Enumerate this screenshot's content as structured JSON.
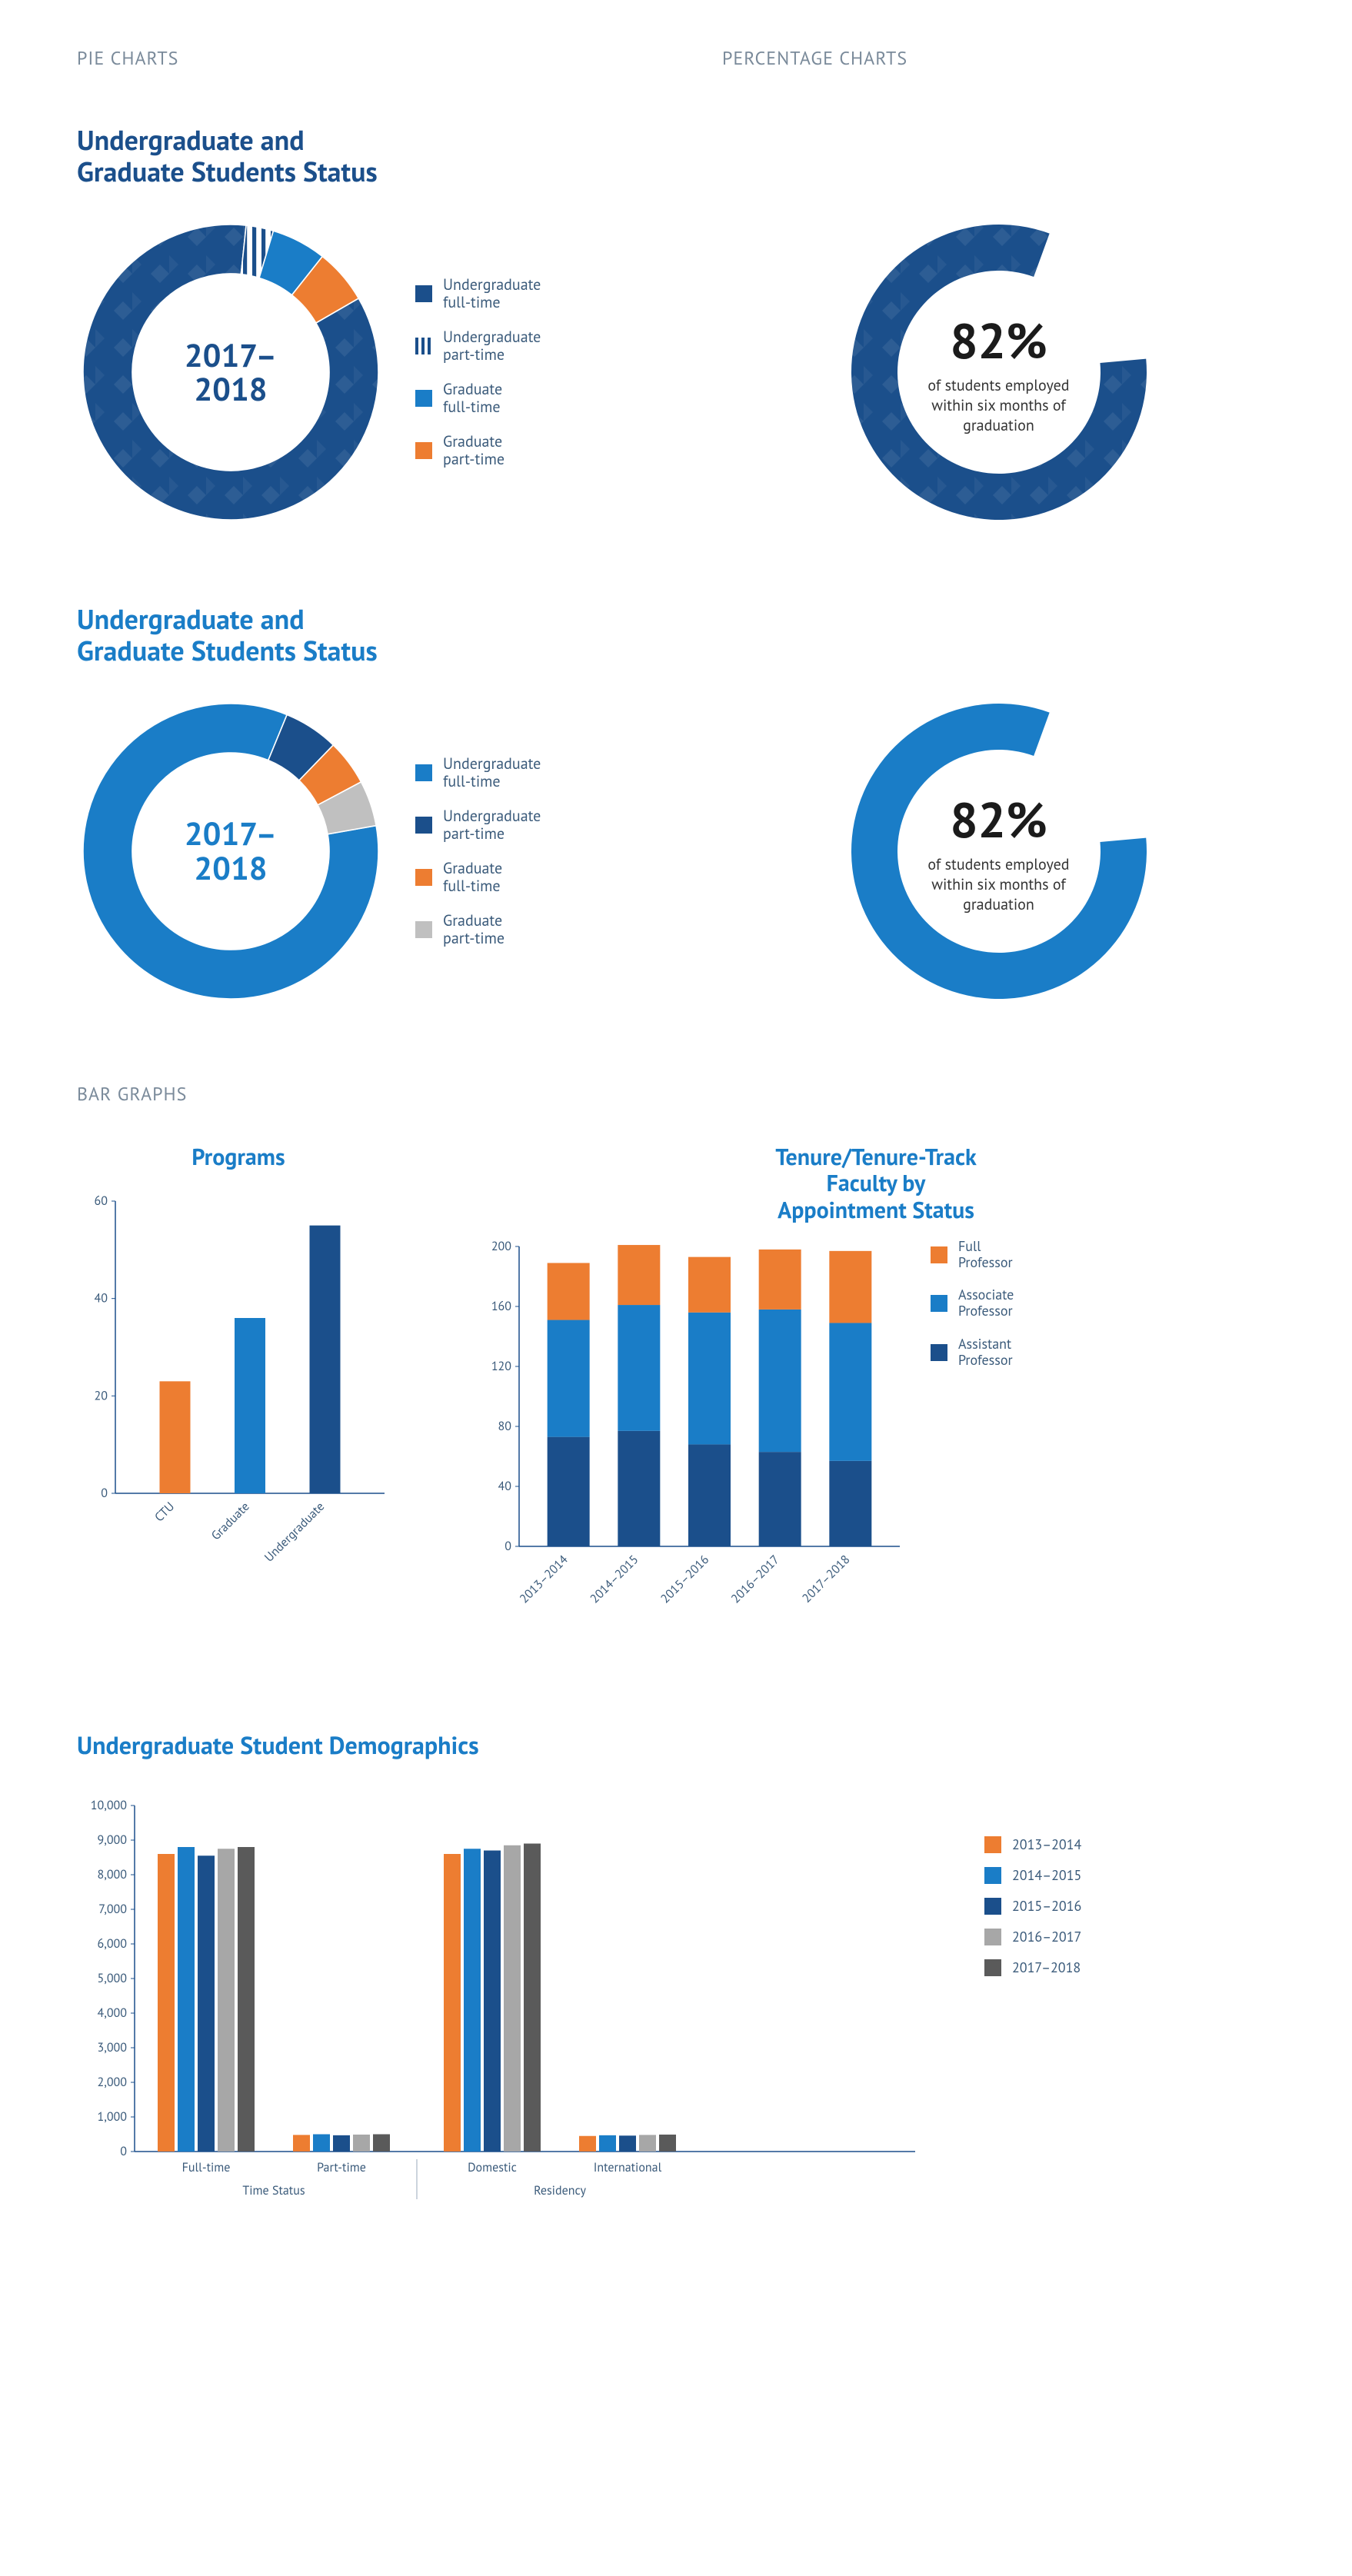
{
  "sections": {
    "pie_label": "PIE CHARTS",
    "pct_label": "PERCENTAGE CHARTS",
    "bar_label": "BAR GRAPHS"
  },
  "pie1": {
    "title_line1": "Undergraduate and",
    "title_line2": "Graduate Students Status",
    "center1": "2017–",
    "center2": "2018",
    "slices": [
      {
        "label_l1": "Undergraduate",
        "label_l2": "full-time",
        "value": 85,
        "color": "#1b4f8b",
        "pattern": true
      },
      {
        "label_l1": "Undergraduate",
        "label_l2": "part-time",
        "value": 3,
        "color": "striped"
      },
      {
        "label_l1": "Graduate",
        "label_l2": "full-time",
        "value": 6,
        "color": "#1a7dc7"
      },
      {
        "label_l1": "Graduate",
        "label_l2": "part-time",
        "value": 6,
        "color": "#ed7d31"
      }
    ]
  },
  "pie2": {
    "title_line1": "Undergraduate and",
    "title_line2": "Graduate Students Status",
    "center1": "2017–",
    "center2": "2018",
    "slices": [
      {
        "label_l1": "Undergraduate",
        "label_l2": "full-time",
        "value": 84,
        "color": "#1a7dc7"
      },
      {
        "label_l1": "Undergraduate",
        "label_l2": "part-time",
        "value": 6,
        "color": "#1b4f8b"
      },
      {
        "label_l1": "Graduate",
        "label_l2": "full-time",
        "value": 5,
        "color": "#ed7d31"
      },
      {
        "label_l1": "Graduate",
        "label_l2": "part-time",
        "value": 5,
        "color": "#c0c0c0"
      }
    ]
  },
  "pct1": {
    "value": 82,
    "value_text": "82%",
    "sub_l1": "of students employed",
    "sub_l2": "within six months of",
    "sub_l3": "graduation",
    "fill_color": "#1b4f8b",
    "empty_color": "#ffffff",
    "pattern": true
  },
  "pct2": {
    "value": 82,
    "value_text": "82%",
    "sub_l1": "of students employed",
    "sub_l2": "within six months of",
    "sub_l3": "graduation",
    "fill_color": "#1a7dc7",
    "empty_color": "#ffffff"
  },
  "bar1": {
    "title": "Programs",
    "ymax": 60,
    "ytick": 20,
    "bars": [
      {
        "label": "CTU",
        "value": 23,
        "color": "#ed7d31"
      },
      {
        "label": "Graduate",
        "value": 36,
        "color": "#1a7dc7"
      },
      {
        "label": "Undergraduate",
        "value": 55,
        "color": "#1b4f8b"
      }
    ]
  },
  "bar2": {
    "title_l1": "Tenure/Tenure-Track",
    "title_l2": "Faculty by",
    "title_l3": "Appointment Status",
    "ymax": 200,
    "ytick": 40,
    "categories": [
      "2013–2014",
      "2014–2015",
      "2015–2016",
      "2016–2017",
      "2017–2018"
    ],
    "series": [
      {
        "name": "Full\nProfessor",
        "color": "#ed7d31",
        "values": [
          38,
          40,
          37,
          40,
          48
        ]
      },
      {
        "name": "Associate\nProfessor",
        "color": "#1a7dc7",
        "values": [
          78,
          84,
          88,
          95,
          92
        ]
      },
      {
        "name": "Assistant\nProfessor",
        "color": "#1b4f8b",
        "values": [
          73,
          77,
          68,
          63,
          57
        ]
      }
    ],
    "legend": [
      {
        "l1": "Full",
        "l2": "Professor",
        "color": "#ed7d31"
      },
      {
        "l1": "Associate",
        "l2": "Professor",
        "color": "#1a7dc7"
      },
      {
        "l1": "Assistant",
        "l2": "Professor",
        "color": "#1b4f8b"
      }
    ]
  },
  "bar3": {
    "title": "Undergraduate Student Demographics",
    "ymax": 10000,
    "ytick": 1000,
    "groups": [
      {
        "name": "Time Status",
        "sub": [
          {
            "label": "Full-time",
            "values": [
              8600,
              8800,
              8550,
              8750,
              8800
            ]
          },
          {
            "label": "Part-time",
            "values": [
              480,
              500,
              470,
              490,
              500
            ]
          }
        ]
      },
      {
        "name": "Residency",
        "sub": [
          {
            "label": "Domestic",
            "values": [
              8600,
              8750,
              8700,
              8850,
              8900
            ]
          },
          {
            "label": "International",
            "values": [
              450,
              470,
              460,
              480,
              490
            ]
          }
        ]
      }
    ],
    "years": [
      "2013–2014",
      "2014–2015",
      "2015–2016",
      "2016–2017",
      "2017–2018"
    ],
    "colors": [
      "#ed7d31",
      "#1a7dc7",
      "#1b4f8b",
      "#a7a7a7",
      "#5a5a5a"
    ]
  }
}
